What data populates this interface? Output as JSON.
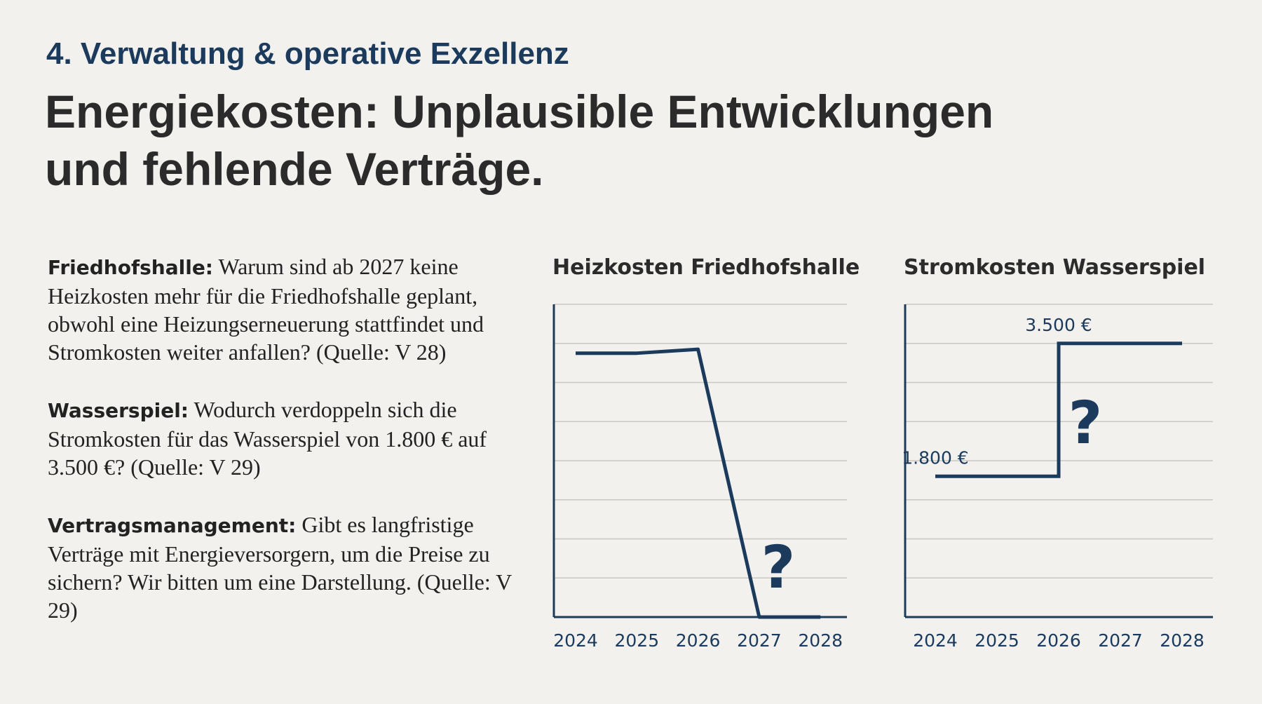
{
  "header": {
    "section": "4. Verwaltung & operative Exzellenz",
    "title_lines": [
      "Energiekosten: Unplausible Entwicklungen",
      "und fehlende Verträge."
    ]
  },
  "paragraphs": [
    {
      "label": "Friedhofshalle:",
      "text": "Warum sind ab 2027 keine Heizkosten mehr für die Friedhofshalle geplant, obwohl eine Heizungserneuerung stattfindet und Stromkosten weiter anfallen? (Quelle: V 28)"
    },
    {
      "label": "Wasserspiel:",
      "text": "Wodurch verdoppeln sich die Stromkosten für das Wasserspiel von 1.800 € auf 3.500 €? (Quelle: V 29)"
    },
    {
      "label": "Vertragsmanagement:",
      "text": "Gibt es langfristige Verträge mit Energieversorgern, um die Preise zu sichern? Wir bitten um eine Darstellung. (Quelle: V 29)"
    }
  ],
  "chart_data": [
    {
      "type": "line",
      "title": "Heizkosten Friedhofshalle",
      "categories": [
        "2024",
        "2025",
        "2026",
        "2027",
        "2028"
      ],
      "values": [
        6.75,
        6.75,
        6.85,
        0,
        0
      ],
      "color": "#1b3a5c",
      "ylim": [
        0,
        8
      ],
      "gridlines": [
        1,
        2,
        3,
        4,
        5,
        6,
        7,
        8
      ],
      "annotation": "?"
    },
    {
      "type": "step",
      "title": "Stromkosten Wasserspiel",
      "categories": [
        "2024",
        "2025",
        "2026",
        "2027",
        "2028"
      ],
      "values": [
        1800,
        1800,
        3500,
        3500,
        3500
      ],
      "value_labels": [
        "1.800 €",
        null,
        "3.500 €",
        null,
        null
      ],
      "color": "#1b3a5c",
      "ylim": [
        0,
        4000
      ],
      "gridlines": [
        500,
        1000,
        1500,
        2000,
        2500,
        3000,
        3500,
        4000
      ],
      "annotation": "?"
    }
  ]
}
